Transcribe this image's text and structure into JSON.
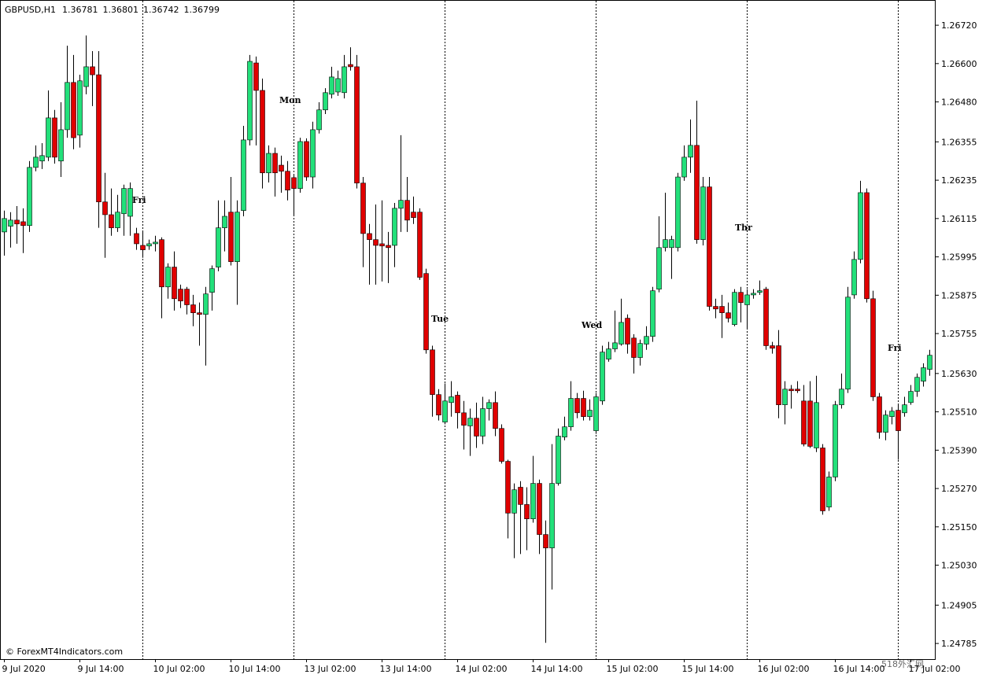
{
  "chart_data": {
    "type": "candlestick",
    "symbol": "GBPUSD,H1",
    "header_values": [
      1.36781,
      1.36801,
      1.36742,
      1.36799
    ],
    "watermark": "© ForexMT4Indicators.com",
    "corner_mark": "518外汇网",
    "up_color": "#22e07a",
    "down_color": "#e00000",
    "wick_color": "#000000",
    "grid": false,
    "ylim": [
      1.24736,
      1.26799
    ],
    "yticks": [
      {
        "value": 1.2672,
        "label": "1.26720"
      },
      {
        "value": 1.266,
        "label": "1.26600"
      },
      {
        "value": 1.2648,
        "label": "1.26480"
      },
      {
        "value": 1.26355,
        "label": "1.26355"
      },
      {
        "value": 1.26235,
        "label": "1.26235"
      },
      {
        "value": 1.26115,
        "label": "1.26115"
      },
      {
        "value": 1.25995,
        "label": "1.25995"
      },
      {
        "value": 1.25875,
        "label": "1.25875"
      },
      {
        "value": 1.25755,
        "label": "1.25755"
      },
      {
        "value": 1.2563,
        "label": "1.25630"
      },
      {
        "value": 1.2551,
        "label": "1.25510"
      },
      {
        "value": 1.2539,
        "label": "1.25390"
      },
      {
        "value": 1.2527,
        "label": "1.25270"
      },
      {
        "value": 1.2515,
        "label": "1.25150"
      },
      {
        "value": 1.2503,
        "label": "1.25030"
      },
      {
        "value": 1.24905,
        "label": "1.24905"
      },
      {
        "value": 1.24785,
        "label": "1.24785"
      }
    ],
    "annotations": [
      {
        "text": "Fri",
        "color": "#ee82ee"
      },
      {
        "text": "Mon",
        "color": "#ffa500"
      },
      {
        "text": "Tue",
        "color": "#ff0000"
      },
      {
        "text": "Wed",
        "color": "#00bfff"
      },
      {
        "text": "Thr",
        "color": "#32cd32"
      },
      {
        "text": "Fri",
        "color": "#ee82ee"
      }
    ],
    "categories": [
      "9 Jul 2020",
      null,
      null,
      null,
      null,
      null,
      null,
      null,
      null,
      null,
      null,
      null,
      "9 Jul 14:00",
      null,
      null,
      null,
      null,
      null,
      null,
      null,
      null,
      null,
      null,
      null,
      "10 Jul 02:00",
      null,
      null,
      null,
      null,
      null,
      null,
      null,
      null,
      null,
      null,
      null,
      "10 Jul 14:00",
      null,
      null,
      null,
      null,
      null,
      null,
      null,
      null,
      null,
      null,
      null,
      "13 Jul 02:00",
      null,
      null,
      null,
      null,
      null,
      null,
      null,
      null,
      null,
      null,
      null,
      "13 Jul 14:00",
      null,
      null,
      null,
      null,
      null,
      null,
      null,
      null,
      null,
      null,
      null,
      "14 Jul 02:00",
      null,
      null,
      null,
      null,
      null,
      null,
      null,
      null,
      null,
      null,
      null,
      "14 Jul 14:00",
      null,
      null,
      null,
      null,
      null,
      null,
      null,
      null,
      null,
      null,
      null,
      "15 Jul 02:00",
      null,
      null,
      null,
      null,
      null,
      null,
      null,
      null,
      null,
      null,
      null,
      "15 Jul 14:00",
      null,
      null,
      null,
      null,
      null,
      null,
      null,
      null,
      null,
      null,
      null,
      "16 Jul 02:00",
      null,
      null,
      null,
      null,
      null,
      null,
      null,
      null,
      null,
      null,
      null,
      "16 Jul 14:00",
      null,
      null,
      null,
      null,
      null,
      null,
      null,
      null,
      null,
      null,
      null,
      "17 Jul 02:00",
      null,
      null,
      null
    ],
    "open": [
      1.26073,
      1.26091,
      1.2611,
      1.26105,
      1.26093,
      1.26275,
      1.26295,
      1.26307,
      1.2643,
      1.26295,
      1.26393,
      1.26541,
      1.26376,
      1.26528,
      1.2659,
      1.26565,
      1.26167,
      1.26127,
      1.26086,
      1.2613,
      1.26122,
      1.26068,
      1.26031,
      1.26029,
      1.26036,
      1.26049,
      1.25901,
      1.25963,
      1.25894,
      1.25894,
      1.25845,
      1.2582,
      1.25815,
      1.25884,
      1.25963,
      1.26086,
      1.26135,
      1.2598,
      1.2614,
      1.26361,
      1.26602,
      1.26516,
      1.26258,
      1.26319,
      1.26282,
      1.26263,
      1.26243,
      1.26209,
      1.26356,
      1.26245,
      1.26393,
      1.26455,
      1.26504,
      1.26511,
      1.26509,
      1.26597,
      1.2659,
      1.26226,
      1.26068,
      1.26049,
      1.26036,
      1.26031,
      1.26031,
      1.26147,
      1.26172,
      1.26135,
      1.26135,
      1.25943,
      1.25704,
      1.25564,
      1.25478,
      1.25539,
      1.25562,
      1.25507,
      1.25466,
      1.2549,
      1.25434,
      1.2552,
      1.25539,
      1.25458,
      1.25355,
      1.25193,
      1.25274,
      1.2522,
      1.25175,
      1.25286,
      1.25126,
      1.25084,
      1.25286,
      1.25431,
      1.25463,
      1.25552,
      1.25552,
      1.25495,
      1.25451,
      1.25544,
      1.25675,
      1.25707,
      1.25722,
      1.25803,
      1.25741,
      1.2568,
      1.25722,
      1.25746,
      1.25894,
      1.26024,
      1.26024,
      1.26024,
      1.26245,
      1.26307,
      1.26344,
      1.26049,
      1.26214,
      1.2584,
      1.2584,
      1.2582,
      1.25783,
      1.25884,
      1.25845,
      1.25876,
      1.25884,
      1.25894,
      1.25717,
      1.25717,
      1.25532,
      1.25581,
      1.25581,
      1.25544,
      1.25544,
      1.25397,
      1.25397,
      1.25212,
      1.25306,
      1.25532,
      1.25581,
      1.25876,
      1.25987,
      1.26196,
      1.25864,
      1.25557,
      1.25446,
      1.25495,
      1.25515,
      1.25507,
      1.25539,
      1.25574,
      1.25606,
      1.25643
    ],
    "high": [
      1.2614,
      1.26135,
      1.26154,
      1.26147,
      1.26295,
      1.26344,
      1.26351,
      1.26516,
      1.26455,
      1.26479,
      1.26656,
      1.26627,
      1.26565,
      1.26688,
      1.26639,
      1.26639,
      1.26258,
      1.26209,
      1.26189,
      1.26221,
      1.26228,
      1.26086,
      1.26073,
      1.26049,
      1.26061,
      1.26056,
      1.25975,
      1.26012,
      1.25908,
      1.25901,
      1.25876,
      1.25852,
      1.25901,
      1.25968,
      1.26172,
      1.26172,
      1.26245,
      1.26172,
      1.26405,
      1.26627,
      1.26622,
      1.26553,
      1.26344,
      1.26337,
      1.26312,
      1.26295,
      1.26253,
      1.26368,
      1.26366,
      1.26418,
      1.26479,
      1.26523,
      1.2659,
      1.26578,
      1.26627,
      1.26651,
      1.26627,
      1.26245,
      1.26098,
      1.26159,
      1.26172,
      1.26073,
      1.26164,
      1.26376,
      1.26245,
      1.26184,
      1.26147,
      1.25958,
      1.25717,
      1.25581,
      1.25599,
      1.25606,
      1.25574,
      1.25544,
      1.2552,
      1.25539,
      1.25557,
      1.25549,
      1.25574,
      1.25471,
      1.2536,
      1.25286,
      1.25293,
      1.25274,
      1.25372,
      1.25298,
      1.2517,
      1.25409,
      1.25458,
      1.25495,
      1.25606,
      1.25569,
      1.25576,
      1.25549,
      1.25569,
      1.25717,
      1.25729,
      1.25827,
      1.25864,
      1.25815,
      1.25753,
      1.25736,
      1.25778,
      1.25901,
      1.26122,
      1.26196,
      1.26061,
      1.26258,
      1.26344,
      1.26425,
      1.26484,
      1.26245,
      1.26245,
      1.25864,
      1.25876,
      1.25852,
      1.25894,
      1.25901,
      1.25894,
      1.25894,
      1.25921,
      1.25901,
      1.25729,
      1.25766,
      1.25606,
      1.25594,
      1.25606,
      1.25594,
      1.25606,
      1.25623,
      1.25409,
      1.25323,
      1.25544,
      1.2563,
      1.25901,
      1.26012,
      1.26233,
      1.26209,
      1.25889,
      1.25569,
      1.25515,
      1.25525,
      1.25532,
      1.25557,
      1.25594,
      1.2563,
      1.25662,
      1.25704
    ],
    "low": [
      1.25999,
      1.26024,
      1.26036,
      1.26007,
      1.26073,
      1.26263,
      1.2627,
      1.26295,
      1.26287,
      1.26245,
      1.26368,
      1.26332,
      1.26337,
      1.26504,
      1.26467,
      1.26086,
      1.25992,
      1.26061,
      1.26073,
      1.26061,
      1.26061,
      1.26017,
      1.25992,
      1.26017,
      1.26012,
      1.25803,
      1.25864,
      1.25827,
      1.25835,
      1.25815,
      1.25778,
      1.25717,
      1.25655,
      1.25827,
      1.2595,
      1.26012,
      1.25968,
      1.25845,
      1.26122,
      1.26344,
      1.26344,
      1.26209,
      1.26228,
      1.26184,
      1.26196,
      1.26172,
      1.26122,
      1.26196,
      1.26233,
      1.26209,
      1.26381,
      1.26442,
      1.26491,
      1.26499,
      1.26491,
      1.26578,
      1.26209,
      1.25963,
      1.25908,
      1.25908,
      1.25918,
      1.25913,
      1.25963,
      1.26073,
      1.26073,
      1.26098,
      1.25923,
      1.25692,
      1.25495,
      1.25483,
      1.25471,
      1.25495,
      1.25458,
      1.25392,
      1.25372,
      1.25397,
      1.25409,
      1.25483,
      1.25434,
      1.25348,
      1.25114,
      1.25052,
      1.25065,
      1.25077,
      1.25163,
      1.25065,
      1.24787,
      1.24954,
      1.25279,
      1.25421,
      1.25451,
      1.2549,
      1.25483,
      1.25483,
      1.25441,
      1.25532,
      1.25667,
      1.25697,
      1.25717,
      1.25692,
      1.2563,
      1.25655,
      1.25704,
      1.25729,
      1.25884,
      1.26012,
      1.25926,
      1.26012,
      1.26233,
      1.26258,
      1.26036,
      1.26031,
      1.25827,
      1.25803,
      1.25741,
      1.2579,
      1.25778,
      1.2579,
      1.25771,
      1.25864,
      1.25876,
      1.25704,
      1.25692,
      1.2549,
      1.25471,
      1.2552,
      1.25569,
      1.25402,
      1.25397,
      1.25384,
      1.25188,
      1.252,
      1.25293,
      1.2552,
      1.25569,
      1.25864,
      1.25975,
      1.25852,
      1.25544,
      1.25426,
      1.25421,
      1.25471,
      1.2536,
      1.25495,
      1.25532,
      1.25557,
      1.25589,
      1.25623
    ],
    "close": [
      1.26115,
      1.2611,
      1.26098,
      1.26093,
      1.26275,
      1.26307,
      1.26312,
      1.2643,
      1.26307,
      1.26393,
      1.26541,
      1.26368,
      1.26546,
      1.2659,
      1.26565,
      1.26167,
      1.26127,
      1.26086,
      1.26135,
      1.26209,
      1.26209,
      1.26036,
      1.26017,
      1.26036,
      1.26041,
      1.25901,
      1.25963,
      1.25864,
      1.25857,
      1.25845,
      1.2582,
      1.25815,
      1.25879,
      1.25958,
      1.26086,
      1.26122,
      1.2598,
      1.26135,
      1.26361,
      1.26607,
      1.26516,
      1.26258,
      1.26319,
      1.26258,
      1.26263,
      1.26204,
      1.26209,
      1.26356,
      1.26245,
      1.26393,
      1.26455,
      1.26509,
      1.26558,
      1.26553,
      1.2659,
      1.2659,
      1.26226,
      1.26068,
      1.26049,
      1.26031,
      1.26029,
      1.26024,
      1.26147,
      1.26172,
      1.2611,
      1.26118,
      1.25931,
      1.25704,
      1.25564,
      1.255,
      1.25544,
      1.25557,
      1.25507,
      1.25468,
      1.2549,
      1.25434,
      1.2552,
      1.25539,
      1.25458,
      1.25355,
      1.25193,
      1.25266,
      1.2522,
      1.25175,
      1.25286,
      1.25126,
      1.25084,
      1.25286,
      1.25434,
      1.25463,
      1.25552,
      1.25507,
      1.25495,
      1.25515,
      1.25557,
      1.25697,
      1.25707,
      1.25726,
      1.2579,
      1.25722,
      1.2568,
      1.25724,
      1.25746,
      1.25889,
      1.26024,
      1.26049,
      1.26049,
      1.26245,
      1.26307,
      1.26344,
      1.26049,
      1.26214,
      1.2584,
      1.25832,
      1.2582,
      1.25803,
      1.25884,
      1.25852,
      1.25876,
      1.25881,
      1.25889,
      1.25717,
      1.25709,
      1.25532,
      1.25581,
      1.25576,
      1.25576,
      1.25409,
      1.25402,
      1.25539,
      1.252,
      1.25306,
      1.25532,
      1.25581,
      1.25869,
      1.25987,
      1.26196,
      1.25864,
      1.25557,
      1.25446,
      1.255,
      1.25512,
      1.25451,
      1.25532,
      1.25574,
      1.25618,
      1.25648,
      1.25687
    ]
  }
}
